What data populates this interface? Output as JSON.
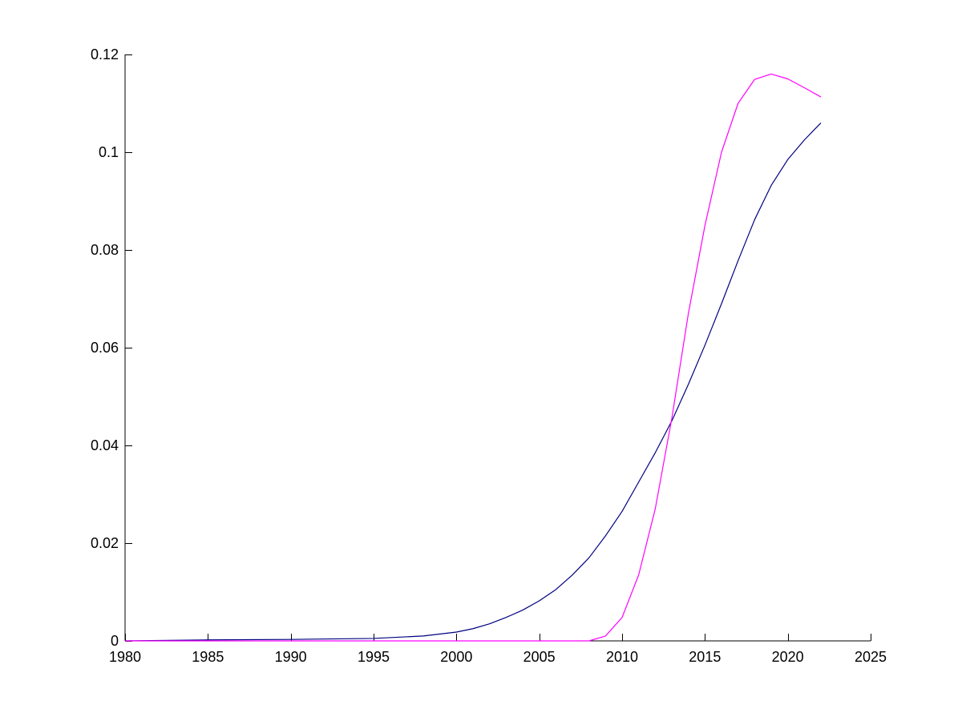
{
  "chart_data": {
    "type": "line",
    "title": "",
    "xlabel": "",
    "ylabel": "",
    "xlim": [
      1980,
      2025
    ],
    "ylim": [
      0,
      0.12
    ],
    "grid": false,
    "xticks": [
      1980,
      1985,
      1990,
      1995,
      2000,
      2005,
      2010,
      2015,
      2020,
      2025
    ],
    "xtick_labels": [
      "1980",
      "1985",
      "1990",
      "1995",
      "2000",
      "2005",
      "2010",
      "2015",
      "2020",
      "2025"
    ],
    "yticks": [
      0,
      0.02,
      0.04,
      0.06,
      0.08,
      0.1,
      0.12
    ],
    "ytick_labels": [
      "0",
      "0.02",
      "0.04",
      "0.06",
      "0.08",
      "0.1",
      "0.12"
    ],
    "series": [
      {
        "color": "#000080",
        "x": [
          1980,
          1985,
          1990,
          1995,
          1998,
          2000,
          2001,
          2002,
          2003,
          2004,
          2005,
          2006,
          2007,
          2008,
          2009,
          2010,
          2011,
          2012,
          2013,
          2014,
          2015,
          2016,
          2017,
          2018,
          2019,
          2020,
          2021,
          2022
        ],
        "y": [
          0,
          0.0002,
          0.0003,
          0.0005,
          0.001,
          0.0018,
          0.0025,
          0.0035,
          0.0048,
          0.0063,
          0.0082,
          0.0105,
          0.0135,
          0.017,
          0.0215,
          0.0265,
          0.0325,
          0.0385,
          0.045,
          0.0525,
          0.0605,
          0.069,
          0.0778,
          0.0862,
          0.0932,
          0.0985,
          0.1025,
          0.106
        ]
      },
      {
        "color": "#ff00ff",
        "x": [
          1980,
          2008,
          2009,
          2010,
          2011,
          2012,
          2013,
          2014,
          2015,
          2016,
          2017,
          2018,
          2019,
          2020,
          2021,
          2022
        ],
        "y": [
          0,
          0,
          0.001,
          0.0048,
          0.0135,
          0.027,
          0.0455,
          0.067,
          0.085,
          0.1,
          0.11,
          0.1149,
          0.116,
          0.115,
          0.1132,
          0.1113
        ]
      }
    ]
  }
}
